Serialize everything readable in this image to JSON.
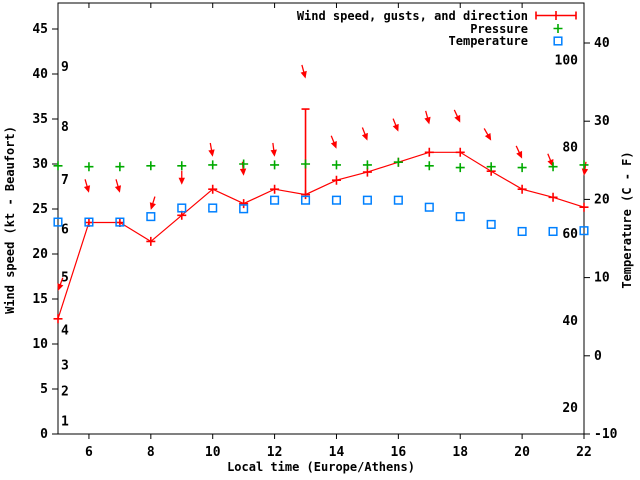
{
  "chart_data": {
    "type": "line",
    "title": "",
    "xlabel": "Local time (Europe/Athens)",
    "ylabel_left": "Wind speed (kt - Beaufort)",
    "ylabel_right": "Temperature (C - F)",
    "grid": false,
    "legend_position": "top-right-inside",
    "x_axis": {
      "range": [
        5,
        22
      ],
      "ticks": [
        6,
        8,
        10,
        12,
        14,
        16,
        18,
        20,
        22
      ]
    },
    "y_left_axis": {
      "units": "kt",
      "range": [
        0,
        47.9
      ],
      "ticks": [
        0,
        5,
        10,
        15,
        20,
        25,
        30,
        35,
        40,
        45
      ],
      "beaufort_inner_labels": [
        {
          "label": "1",
          "kt": 1.4
        },
        {
          "label": "2",
          "kt": 4.7
        },
        {
          "label": "3",
          "kt": 7.6
        },
        {
          "label": "4",
          "kt": 11.5
        },
        {
          "label": "5",
          "kt": 17.4
        },
        {
          "label": "6",
          "kt": 22.7
        },
        {
          "label": "7",
          "kt": 28.2
        },
        {
          "label": "8",
          "kt": 34.1
        },
        {
          "label": "9",
          "kt": 40.8
        }
      ]
    },
    "y_right_axis": {
      "units": "C",
      "range": [
        -10,
        45.1
      ],
      "ticks": [
        -10,
        0,
        10,
        20,
        30,
        40
      ],
      "fahrenheit_inner_labels": [
        20,
        40,
        60,
        80,
        100
      ]
    },
    "hours": [
      5,
      6,
      7,
      8,
      9,
      10,
      11,
      12,
      13,
      14,
      15,
      16,
      17,
      18,
      19,
      20,
      21,
      22
    ],
    "series": [
      {
        "name": "Wind speed, gusts, and direction",
        "color": "#ff0000",
        "marker": "plus",
        "axis": "left",
        "values": [
          12.8,
          23.5,
          23.5,
          21.4,
          24.3,
          27.2,
          25.6,
          27.2,
          26.6,
          28.2,
          29.1,
          30.2,
          31.3,
          31.3,
          29.2,
          27.2,
          26.3,
          25.2
        ],
        "gust_bars": [
          {
            "hour": 13,
            "from": 26.6,
            "to": 36.1
          }
        ],
        "direction_arrows": [
          {
            "hour": 5,
            "kt": 15.9,
            "angle": -20
          },
          {
            "hour": 6,
            "kt": 26.8,
            "angle": 16
          },
          {
            "hour": 7,
            "kt": 26.8,
            "angle": 16
          },
          {
            "hour": 8,
            "kt": 24.9,
            "angle": -17
          },
          {
            "hour": 9,
            "kt": 27.7,
            "angle": 0
          },
          {
            "hour": 10,
            "kt": 30.8,
            "angle": 10
          },
          {
            "hour": 11,
            "kt": 28.7,
            "angle": 5
          },
          {
            "hour": 12,
            "kt": 30.8,
            "angle": 7
          },
          {
            "hour": 13,
            "kt": 39.5,
            "angle": 15
          },
          {
            "hour": 14,
            "kt": 31.7,
            "angle": 22
          },
          {
            "hour": 15,
            "kt": 32.6,
            "angle": 21
          },
          {
            "hour": 16,
            "kt": 33.6,
            "angle": 22
          },
          {
            "hour": 17,
            "kt": 34.4,
            "angle": 15
          },
          {
            "hour": 18,
            "kt": 34.6,
            "angle": 25
          },
          {
            "hour": 19,
            "kt": 32.6,
            "angle": 30
          },
          {
            "hour": 20,
            "kt": 30.6,
            "angle": 25
          },
          {
            "hour": 21,
            "kt": 29.7,
            "angle": 22
          },
          {
            "hour": 22,
            "kt": 28.7,
            "angle": -8
          }
        ]
      },
      {
        "name": "Pressure",
        "color": "#00aa00",
        "marker": "plus",
        "axis": "left",
        "values": [
          29.8,
          29.7,
          29.7,
          29.8,
          29.8,
          29.9,
          30.0,
          29.9,
          30.0,
          29.9,
          29.9,
          30.2,
          29.8,
          29.6,
          29.7,
          29.6,
          29.7,
          29.9
        ]
      },
      {
        "name": "Temperature",
        "color": "#0080ff",
        "marker": "square",
        "axis": "right",
        "values": [
          17.1,
          17.1,
          17.1,
          17.8,
          18.9,
          18.9,
          18.8,
          19.9,
          19.9,
          19.9,
          19.9,
          19.9,
          19.0,
          17.8,
          16.8,
          15.9,
          15.9,
          16.0
        ]
      }
    ]
  }
}
